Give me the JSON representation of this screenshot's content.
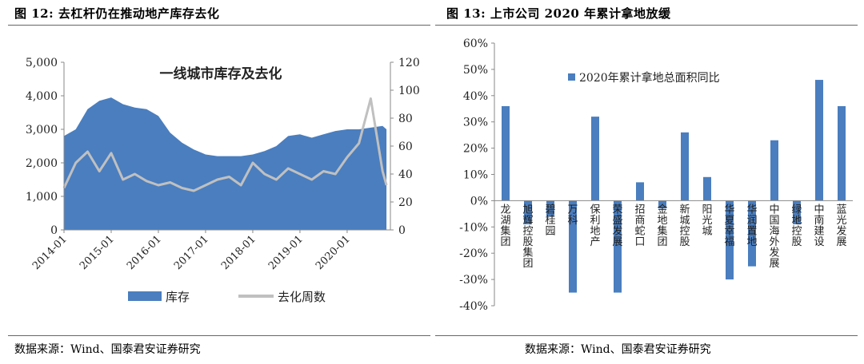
{
  "left": {
    "figure_title": "图 12: 去杠杆仍在推动地产库存去化",
    "source": "数据来源：Wind、国泰君安证券研究"
  },
  "right": {
    "figure_title": "图 13: 上市公司 2020 年累计拿地放缓",
    "source": "数据来源：Wind、国泰君安证券研究"
  },
  "colors": {
    "inventory": "#4a7ebf",
    "turnover": "#c0c0c0",
    "bar": "#4a7ebf"
  },
  "chart_data": [
    {
      "type": "area",
      "title": "一线城市库存及去化",
      "x_ticks": [
        "2014-01",
        "2015-01",
        "2016-01",
        "2017-01",
        "2018-01",
        "2019-01",
        "2020-01"
      ],
      "x_range": [
        "2014-01",
        "2020-12"
      ],
      "y_left": {
        "ticks": [
          "0",
          "1,000",
          "2,000",
          "3,000",
          "4,000",
          "5,000"
        ],
        "range": [
          0,
          5000
        ]
      },
      "y_right": {
        "ticks": [
          "0",
          "20",
          "40",
          "60",
          "80",
          "100",
          "120"
        ],
        "range": [
          0,
          120
        ]
      },
      "legend_position": "bottom",
      "x_months": [
        0,
        3,
        6,
        9,
        12,
        15,
        18,
        21,
        24,
        27,
        30,
        33,
        36,
        39,
        42,
        45,
        48,
        51,
        54,
        57,
        60,
        63,
        66,
        69,
        72,
        75,
        78,
        81,
        82
      ],
      "series": [
        {
          "name": "库存",
          "type": "area",
          "axis": "left",
          "values": [
            2800,
            3000,
            3600,
            3850,
            3950,
            3750,
            3650,
            3600,
            3400,
            2900,
            2600,
            2400,
            2250,
            2200,
            2200,
            2200,
            2250,
            2350,
            2500,
            2800,
            2850,
            2750,
            2850,
            2950,
            3000,
            3000,
            3050,
            3100,
            3000
          ]
        },
        {
          "name": "去化周数",
          "type": "line",
          "axis": "right",
          "values": [
            30,
            48,
            56,
            42,
            55,
            36,
            40,
            35,
            32,
            34,
            30,
            28,
            32,
            36,
            38,
            32,
            48,
            40,
            36,
            44,
            40,
            36,
            42,
            40,
            52,
            62,
            94,
            42,
            32
          ]
        }
      ]
    },
    {
      "type": "bar",
      "y_ticks": [
        "60%",
        "50%",
        "40%",
        "30%",
        "20%",
        "10%",
        "0%",
        "-10%",
        "-20%",
        "-30%",
        "-40%"
      ],
      "ylim": [
        -0.4,
        0.6
      ],
      "legend_position": "top-left",
      "categories": [
        "龙湖集团",
        "旭辉控股集团",
        "碧桂园",
        "万科",
        "保利地产",
        "荣盛发展",
        "招商蛇口",
        "金地集团",
        "新城控股",
        "阳光城",
        "华夏幸福",
        "华润置地",
        "中国海外发展",
        "绿地控股",
        "中南建设",
        "蓝光发展"
      ],
      "series": [
        {
          "name": "2020年累计拿地总面积同比",
          "values": [
            0.36,
            -0.09,
            -0.06,
            -0.35,
            0.32,
            -0.35,
            0.07,
            -0.03,
            0.26,
            0.09,
            -0.3,
            -0.25,
            0.23,
            -0.09,
            0.46,
            0.36
          ]
        }
      ]
    }
  ]
}
